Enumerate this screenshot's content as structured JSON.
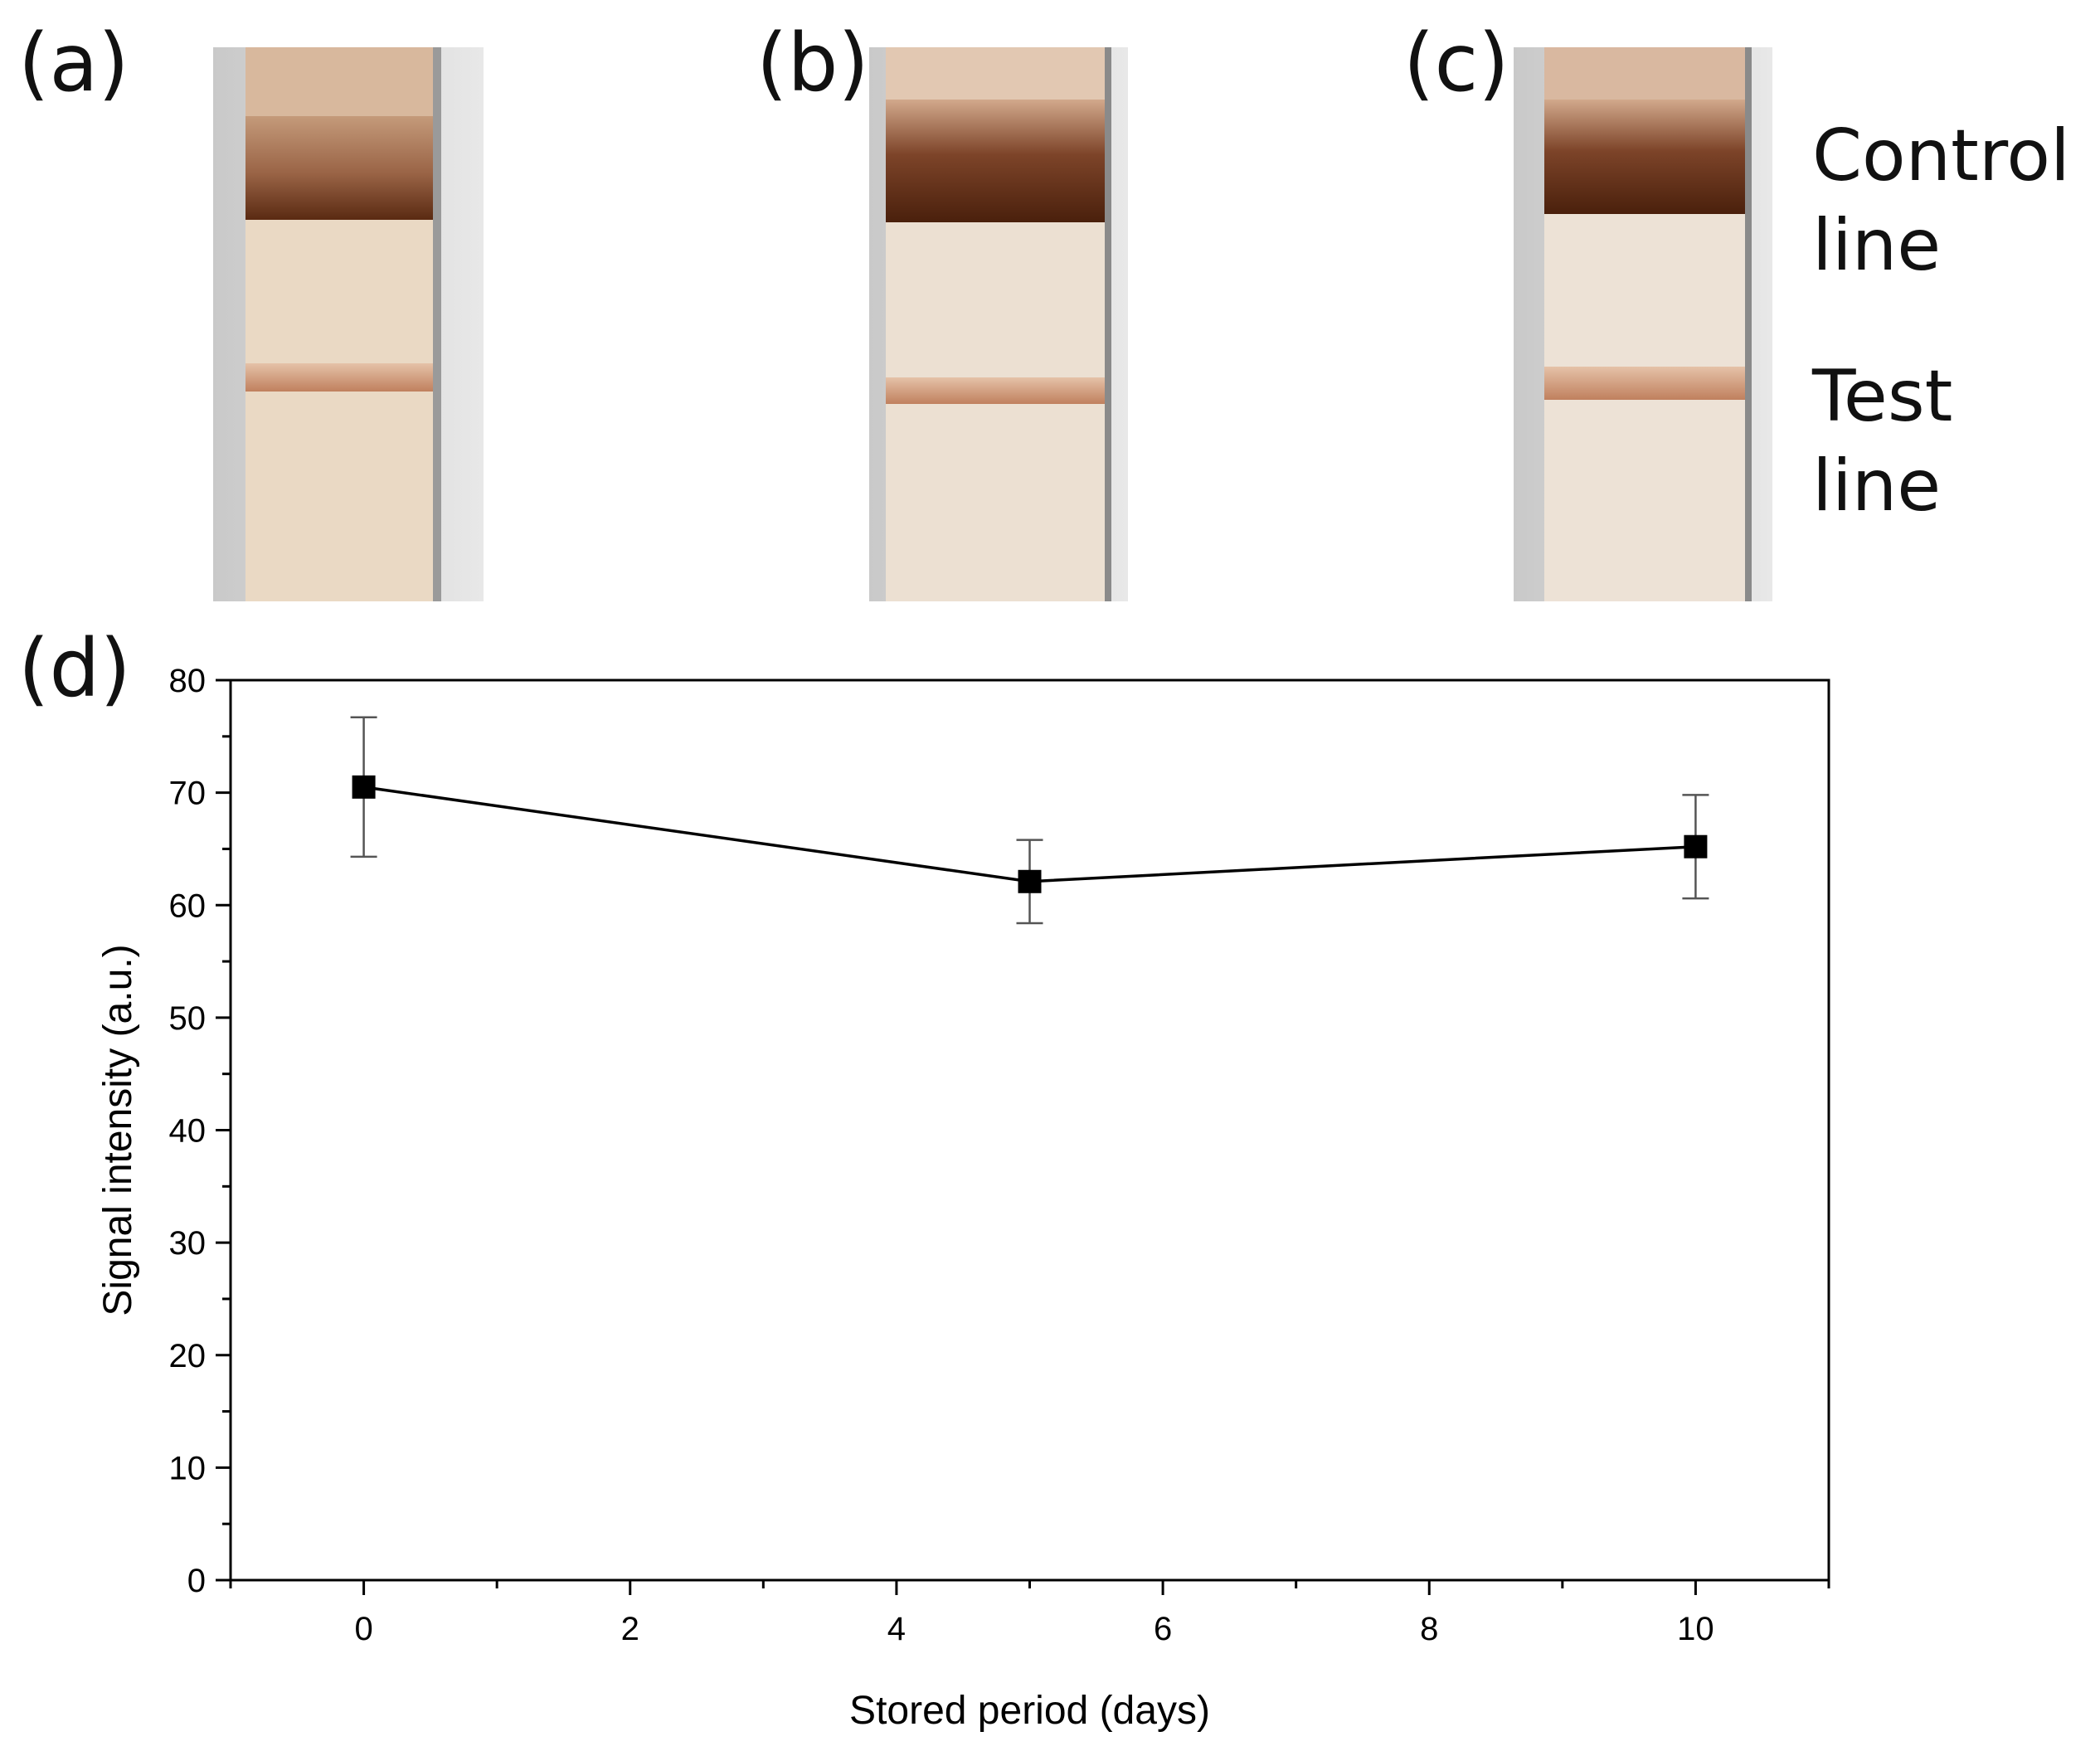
{
  "panels": {
    "a": "(a)",
    "b": "(b)",
    "c": "(c)",
    "d": "(d)"
  },
  "strip_labels": {
    "control_line_1": "Control",
    "control_line_2": "line",
    "test_line": "Test line"
  },
  "colors": {
    "strip_background": "#ead9c4",
    "housing": "#d9d9d9",
    "control_line": "#5a2a12",
    "test_line": "#c08060",
    "series": "#000000",
    "error_bar": "#555555"
  },
  "chart_data": {
    "type": "line",
    "title": "",
    "xlabel": "Stored period (days)",
    "ylabel": "Signal intensity (a.u.)",
    "xlim": [
      -1,
      11
    ],
    "ylim": [
      0,
      80
    ],
    "xticks": [
      0,
      2,
      4,
      6,
      8,
      10
    ],
    "yticks": [
      0,
      10,
      20,
      30,
      40,
      50,
      60,
      70,
      80
    ],
    "grid": false,
    "series": [
      {
        "name": "Signal intensity",
        "x": [
          0,
          5,
          10
        ],
        "y": [
          70.5,
          62.1,
          65.2
        ],
        "error": [
          6.2,
          3.7,
          4.6
        ]
      }
    ]
  }
}
